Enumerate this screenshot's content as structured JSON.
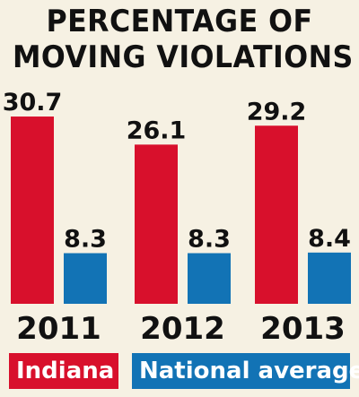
{
  "title_line_1": "PERCENTAGE OF",
  "title_line_2": "MOVING VIOLATIONS",
  "colors": {
    "background": "#f6f1e3",
    "indiana": "#d8102c",
    "national": "#1273b5",
    "text": "#111111"
  },
  "chart_data": {
    "type": "bar",
    "title": "PERCENTAGE OF MOVING VIOLATIONS",
    "categories": [
      "2011",
      "2012",
      "2013"
    ],
    "series": [
      {
        "name": "Indiana",
        "values": [
          30.7,
          26.1,
          29.2
        ]
      },
      {
        "name": "National average",
        "values": [
          8.3,
          8.3,
          8.4
        ]
      }
    ],
    "value_labels": [
      [
        "30.7",
        "26.1",
        "29.2"
      ],
      [
        "8.3",
        "8.3",
        "8.4"
      ]
    ],
    "ylim": [
      0,
      31
    ],
    "grid": false,
    "legend": "bottom"
  }
}
